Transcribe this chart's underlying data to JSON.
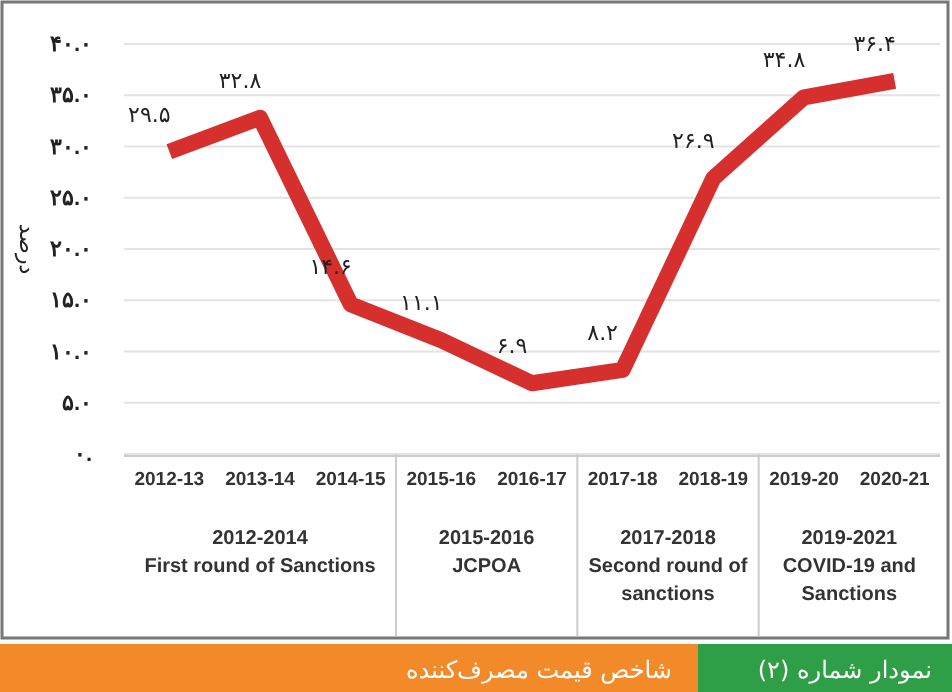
{
  "chart_data": {
    "type": "line",
    "title": "شاخص قیمت مصرف‌کننده",
    "subtitle": "نمودار شماره (۲)",
    "ylabel": "درصد",
    "categories": [
      "2012-13",
      "2013-14",
      "2014-15",
      "2015-16",
      "2016-17",
      "2017-18",
      "2018-19",
      "2019-20",
      "2020-21"
    ],
    "series": [
      {
        "color": "#d5302e",
        "values": [
          29.5,
          32.8,
          14.6,
          11.1,
          6.9,
          8.2,
          26.9,
          34.8,
          36.4
        ],
        "value_labels": [
          "۲۹.۵",
          "۳۲.۸",
          "۱۴.۶",
          "۱۱.۱",
          "۶.۹",
          "۸.۲",
          "۲۶.۹",
          "۳۴.۸",
          "۳۶.۴"
        ]
      }
    ],
    "ylim": [
      0,
      40
    ],
    "yticks": [
      {
        "value": 0,
        "label": "۰."
      },
      {
        "value": 5,
        "label": "۵.۰"
      },
      {
        "value": 10,
        "label": "۱۰.۰"
      },
      {
        "value": 15,
        "label": "۱۵.۰"
      },
      {
        "value": 20,
        "label": "۲۰.۰"
      },
      {
        "value": 25,
        "label": "۲۵.۰"
      },
      {
        "value": 30,
        "label": "۳۰.۰"
      },
      {
        "value": 35,
        "label": "۳۵.۰"
      },
      {
        "value": 40,
        "label": "۴۰.۰"
      }
    ],
    "grid": "y",
    "marker": "none",
    "line_style": "solid",
    "annotations": [
      "2012-2014\nFirst round of Sanctions",
      "2015-2016\nJCPOA",
      "2017-2018\nSecond round of\nsanctions",
      "2019-2021\nCOVID-19 and\nSanctions"
    ]
  }
}
